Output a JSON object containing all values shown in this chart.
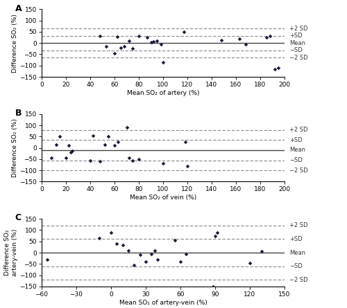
{
  "panel_A": {
    "title": "A",
    "xlabel": "Mean SO₂ of artery (%)",
    "ylabel": "Difference SO₂ (%)",
    "xlim": [
      0,
      200
    ],
    "ylim": [
      -150,
      150
    ],
    "xticks": [
      0,
      20,
      40,
      60,
      80,
      100,
      120,
      140,
      160,
      180,
      200
    ],
    "yticks": [
      -150,
      -100,
      -50,
      0,
      50,
      100,
      150
    ],
    "mean_val": 0,
    "x_data": [
      48,
      53,
      60,
      62,
      65,
      68,
      72,
      75,
      80,
      87,
      90,
      92,
      95,
      98,
      100,
      117,
      148,
      163,
      168,
      185,
      188,
      192,
      195
    ],
    "y_data": [
      30,
      -15,
      -45,
      28,
      -20,
      -15,
      10,
      -25,
      30,
      25,
      5,
      8,
      10,
      -5,
      -85,
      50,
      12,
      20,
      -5,
      25,
      30,
      -115,
      -110
    ],
    "line_labels": [
      "+2 SD",
      "+SD",
      "Mean",
      "−SD",
      "−2 SD"
    ],
    "line_values": [
      65,
      32,
      0,
      -32,
      -65
    ],
    "line_styles": [
      "dashed",
      "dashed",
      "solid",
      "dashed",
      "dashed"
    ]
  },
  "panel_B": {
    "title": "B",
    "xlabel": "Mean SO₂ of vein (%)",
    "ylabel": "Difference SO₂ (%)",
    "xlim": [
      0,
      200
    ],
    "ylim": [
      -150,
      150
    ],
    "xticks": [
      0,
      20,
      40,
      60,
      80,
      100,
      120,
      140,
      160,
      180,
      200
    ],
    "yticks": [
      -150,
      -100,
      -50,
      0,
      50,
      100,
      150
    ],
    "mean_val": -10,
    "x_data": [
      8,
      12,
      15,
      20,
      22,
      24,
      25,
      40,
      42,
      48,
      52,
      55,
      60,
      63,
      70,
      72,
      75,
      80,
      100,
      118,
      120
    ],
    "y_data": [
      -45,
      15,
      50,
      -45,
      10,
      -20,
      -15,
      -55,
      55,
      -60,
      15,
      50,
      10,
      25,
      90,
      -45,
      -55,
      -50,
      -70,
      25,
      -80
    ],
    "line_labels": [
      "+2 SD",
      "+SD",
      "Mean",
      "−SD",
      "−2 SD"
    ],
    "line_values": [
      80,
      35,
      -10,
      -55,
      -100
    ],
    "line_styles": [
      "dashed",
      "dashed",
      "solid",
      "dashed",
      "dashed"
    ]
  },
  "panel_C": {
    "title": "C",
    "xlabel": "Mean SO₂ of artery-vein (%)",
    "ylabel": "Difference SO₂\nartery-vein (%)",
    "xlim": [
      -60,
      150
    ],
    "ylim": [
      -150,
      150
    ],
    "xticks": [
      -60,
      -30,
      0,
      30,
      60,
      90,
      120,
      150
    ],
    "yticks": [
      -150,
      -100,
      -50,
      0,
      50,
      100,
      150
    ],
    "mean_val": 0,
    "x_data": [
      -55,
      -10,
      0,
      5,
      10,
      15,
      20,
      25,
      30,
      35,
      38,
      40,
      55,
      60,
      65,
      88,
      90,
      92,
      120,
      130
    ],
    "y_data": [
      -30,
      65,
      90,
      40,
      35,
      10,
      -55,
      -10,
      -40,
      -5,
      10,
      -30,
      55,
      -40,
      -5,
      -150,
      75,
      90,
      -45,
      5
    ],
    "line_labels": [
      "+2 SD",
      "+SD",
      "Mean",
      "−SD",
      "−2 SD"
    ],
    "line_values": [
      120,
      60,
      0,
      -60,
      -120
    ],
    "line_styles": [
      "dashed",
      "dashed",
      "solid",
      "dashed",
      "dashed"
    ]
  },
  "dot_color": "#1a1a3a",
  "dot_marker": "D",
  "dot_size": 8,
  "mean_line_color": "#444444",
  "dashed_line_color": "#888888",
  "tick_fontsize": 6.5,
  "ylabel_fontsize": 6.5,
  "xlabel_fontsize": 6.5,
  "panel_label_fontsize": 9,
  "line_label_fontsize": 6
}
